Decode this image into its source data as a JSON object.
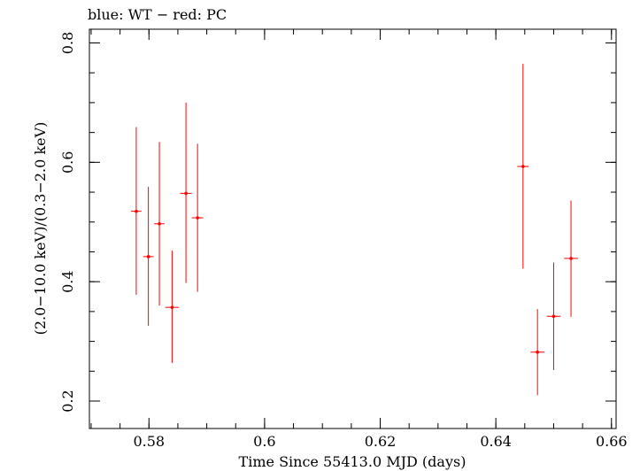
{
  "chart_data": {
    "type": "scatter",
    "title": "blue: WT − red: PC",
    "xlabel": "Time Since 55413.0 MJD (days)",
    "ylabel": "(2.0−10.0 keV)/(0.3−2.0 keV)",
    "xlim": [
      0.5697,
      0.6608
    ],
    "ylim": [
      0.154,
      0.823
    ],
    "x_ticks": [
      {
        "value": 0.58,
        "label": "0.58"
      },
      {
        "value": 0.6,
        "label": "0.6"
      },
      {
        "value": 0.62,
        "label": "0.62"
      },
      {
        "value": 0.64,
        "label": "0.64"
      },
      {
        "value": 0.66,
        "label": "0.66"
      }
    ],
    "y_ticks": [
      {
        "value": 0.2,
        "label": "0.2"
      },
      {
        "value": 0.4,
        "label": "0.4"
      },
      {
        "value": 0.6,
        "label": "0.6"
      },
      {
        "value": 0.8,
        "label": "0.8"
      }
    ],
    "grid": false,
    "series": [
      {
        "color": "#ff0000",
        "points": [
          {
            "x": 0.5778,
            "xerr": 0.0009,
            "y": 0.518,
            "ylo": 0.378,
            "yhi": 0.659
          },
          {
            "x": 0.5799,
            "xerr": 0.0009,
            "y": 0.442,
            "ylo": 0.326,
            "yhi": 0.559
          },
          {
            "x": 0.5818,
            "xerr": 0.0009,
            "y": 0.497,
            "ylo": 0.36,
            "yhi": 0.634
          },
          {
            "x": 0.584,
            "xerr": 0.0012,
            "y": 0.357,
            "ylo": 0.264,
            "yhi": 0.452
          },
          {
            "x": 0.5864,
            "xerr": 0.001,
            "y": 0.548,
            "ylo": 0.398,
            "yhi": 0.7
          },
          {
            "x": 0.5884,
            "xerr": 0.001,
            "y": 0.507,
            "ylo": 0.383,
            "yhi": 0.631
          },
          {
            "x": 0.6447,
            "xerr": 0.001,
            "y": 0.593,
            "ylo": 0.422,
            "yhi": 0.765
          },
          {
            "x": 0.6472,
            "xerr": 0.0012,
            "y": 0.282,
            "ylo": 0.21,
            "yhi": 0.354
          },
          {
            "x": 0.65,
            "xerr": 0.0012,
            "y": 0.342,
            "ylo": 0.252,
            "yhi": 0.432
          },
          {
            "x": 0.653,
            "xerr": 0.0012,
            "y": 0.439,
            "ylo": 0.341,
            "yhi": 0.536
          }
        ]
      }
    ]
  }
}
